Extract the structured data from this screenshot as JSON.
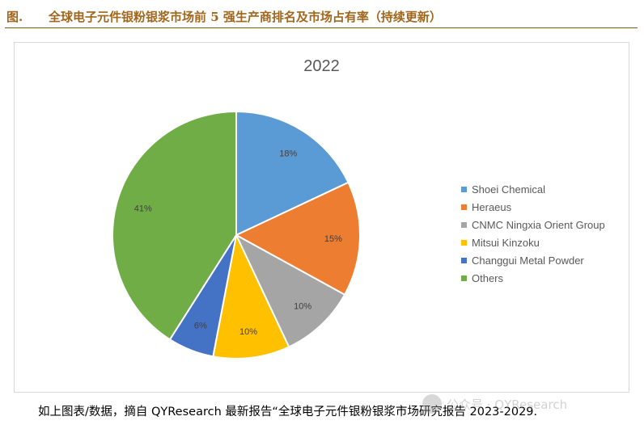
{
  "header": {
    "figure_label": "图.",
    "title": "全球电子元件银粉银浆市场前 5 强生产商排名及市场占有率（持续更新）"
  },
  "chart_data": {
    "type": "pie",
    "title": "2022",
    "categories": [
      "Shoei Chemical",
      "Heraeus",
      "CNMC Ningxia Orient Group",
      "Mitsui Kinzoku",
      "Changgui Metal Powder",
      "Others"
    ],
    "values": [
      18,
      15,
      10,
      10,
      6,
      41
    ],
    "labels": [
      "18%",
      "15%",
      "10%",
      "10%",
      "6%",
      "41%"
    ],
    "colors": [
      "#5b9bd5",
      "#ed7d31",
      "#a5a5a5",
      "#ffc000",
      "#4472c4",
      "#70ad47"
    ],
    "legend_position": "right",
    "start_angle_deg": 0,
    "direction": "clockwise"
  },
  "caption": "如上图表/数据，摘自 QYResearch 最新报告“全球电子元件银粉银浆市场研究报告 2023-2029.",
  "watermark": "公众号 · QYResearch"
}
